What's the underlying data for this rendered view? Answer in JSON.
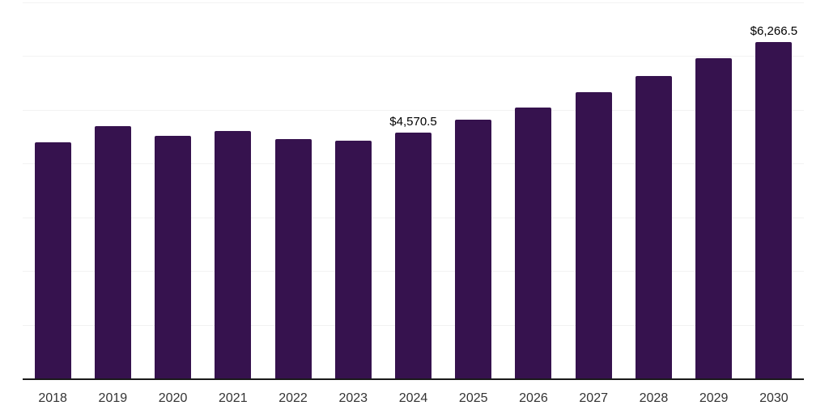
{
  "chart_data": {
    "type": "bar",
    "title": "",
    "xlabel": "",
    "ylabel": "",
    "categories": [
      "2018",
      "2019",
      "2020",
      "2021",
      "2022",
      "2023",
      "2024",
      "2025",
      "2026",
      "2027",
      "2028",
      "2029",
      "2030"
    ],
    "values": [
      4390,
      4700,
      4510,
      4610,
      4455,
      4430,
      4570.5,
      4810,
      5045,
      5330,
      5630,
      5960,
      6266.5
    ],
    "annotations": [
      {
        "category": "2024",
        "index": 6,
        "text": "$4,570.5"
      },
      {
        "category": "2030",
        "index": 12,
        "text": "$6,266.5"
      }
    ],
    "ylim": [
      0,
      7000
    ],
    "gridline_step": 1000,
    "grid": true,
    "legend": false,
    "y_axis_labels_shown": false,
    "colors": {
      "bar": "#36124E",
      "gridline": "#F2F2F2",
      "axis_line": "#1A1A1A",
      "tick_label": "#333333",
      "data_label": "#000000",
      "background": "#FFFFFF"
    }
  }
}
